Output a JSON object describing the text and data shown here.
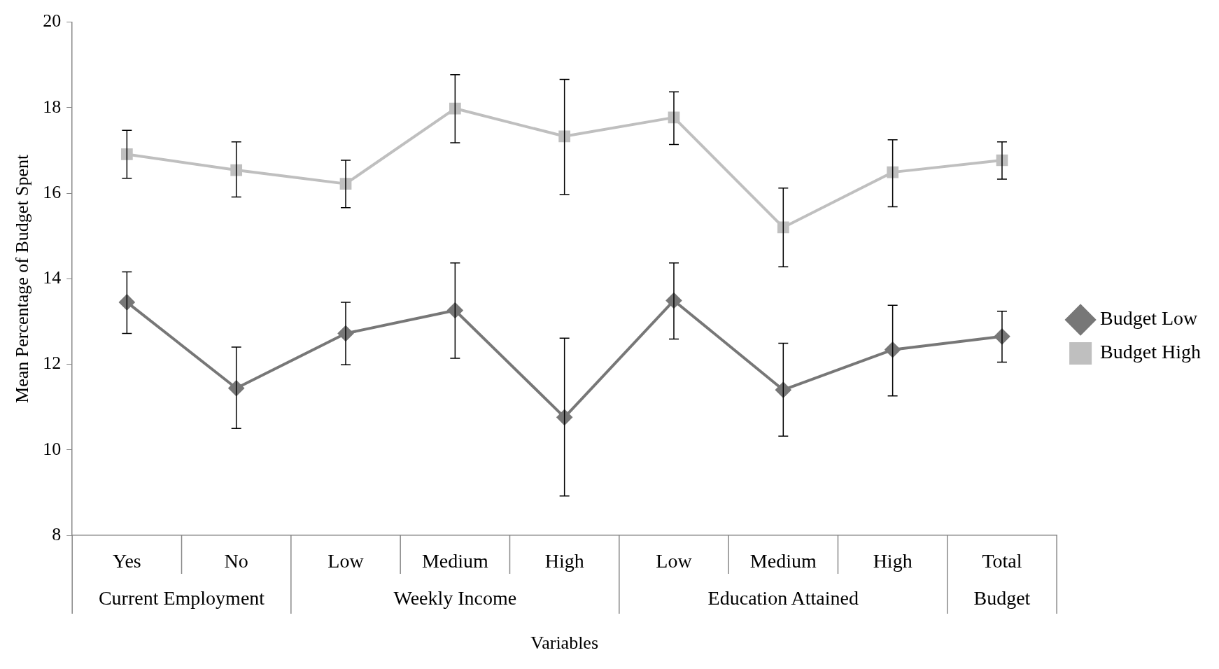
{
  "chart_data": {
    "type": "line",
    "xlabel": "Variables",
    "ylabel": "Mean Percentage of Budget Spent",
    "categories": [
      "Yes",
      "No",
      "Low",
      "Medium",
      "High",
      "Low",
      "Medium",
      "High",
      "Total"
    ],
    "annotations": [
      "Current Employment",
      "Weekly Income",
      "Education Attained",
      "Budget"
    ],
    "series": [
      {
        "name": "Budget Low",
        "color": "#777777",
        "marker": "diamond",
        "values": [
          13.45,
          11.44,
          12.72,
          13.26,
          10.76,
          13.49,
          11.4,
          12.34,
          12.65
        ],
        "errors": [
          [
            12.72,
            14.16
          ],
          [
            10.5,
            12.4
          ],
          [
            11.99,
            13.45
          ],
          [
            12.14,
            14.37
          ],
          [
            8.92,
            12.61
          ],
          [
            12.59,
            14.37
          ],
          [
            10.32,
            12.49
          ],
          [
            11.26,
            13.38
          ],
          [
            12.05,
            13.24
          ]
        ]
      },
      {
        "name": "Budget High",
        "color": "#bfbfbf",
        "marker": "square",
        "values": [
          16.91,
          16.54,
          16.22,
          17.98,
          17.33,
          17.77,
          15.2,
          16.49,
          16.77
        ],
        "errors": [
          [
            16.35,
            17.47
          ],
          [
            15.91,
            17.2
          ],
          [
            15.66,
            16.77
          ],
          [
            17.18,
            18.77
          ],
          [
            15.97,
            18.66
          ],
          [
            17.14,
            18.37
          ],
          [
            14.28,
            16.12
          ],
          [
            15.68,
            17.25
          ],
          [
            16.33,
            17.2
          ]
        ]
      }
    ],
    "ylim": [
      8,
      20
    ],
    "yticks": [
      8,
      10,
      12,
      14,
      16,
      18,
      20
    ],
    "grid": false,
    "legend": "right",
    "line_style": "solid"
  }
}
